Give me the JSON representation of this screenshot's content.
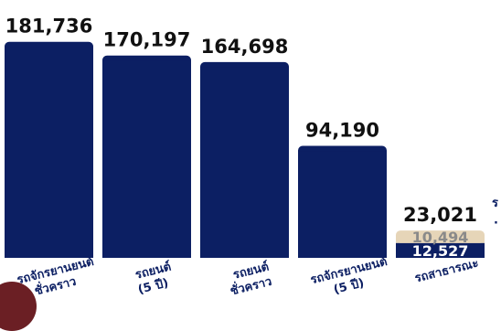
{
  "chart_data": {
    "type": "bar",
    "stacked": true,
    "categories": [
      {
        "line1": "รถจักรยานยนต์",
        "line2": "ชั่วคราว"
      },
      {
        "line1": "รถยนต์",
        "line2": "(5 ปี)"
      },
      {
        "line1": "รถยนต์",
        "line2": "ชั่วคราว"
      },
      {
        "line1": "รถจักรยานยนต์",
        "line2": "(5 ปี)"
      },
      {
        "line1": "รถสาธารณะ",
        "line2": ""
      }
    ],
    "totals": [
      "181,736",
      "170,197",
      "164,698",
      "94,190",
      "23,021"
    ],
    "series": [
      {
        "values": [
          181736,
          170197,
          164698,
          94190,
          12527
        ],
        "color": "#0c1f63"
      },
      {
        "values": [
          0,
          0,
          0,
          0,
          10494
        ],
        "color": "#e6d5b8"
      }
    ],
    "segment_labels": [
      {
        "category": 4,
        "series": 0,
        "text": "12,527",
        "color": "#ffffff"
      },
      {
        "category": 4,
        "series": 1,
        "text": "10,494",
        "color": "#8a8a8a"
      }
    ],
    "clipped_text": [
      "ร",
      "·"
    ],
    "ylim": [
      0,
      190000
    ],
    "grid": false,
    "legend": "none"
  }
}
